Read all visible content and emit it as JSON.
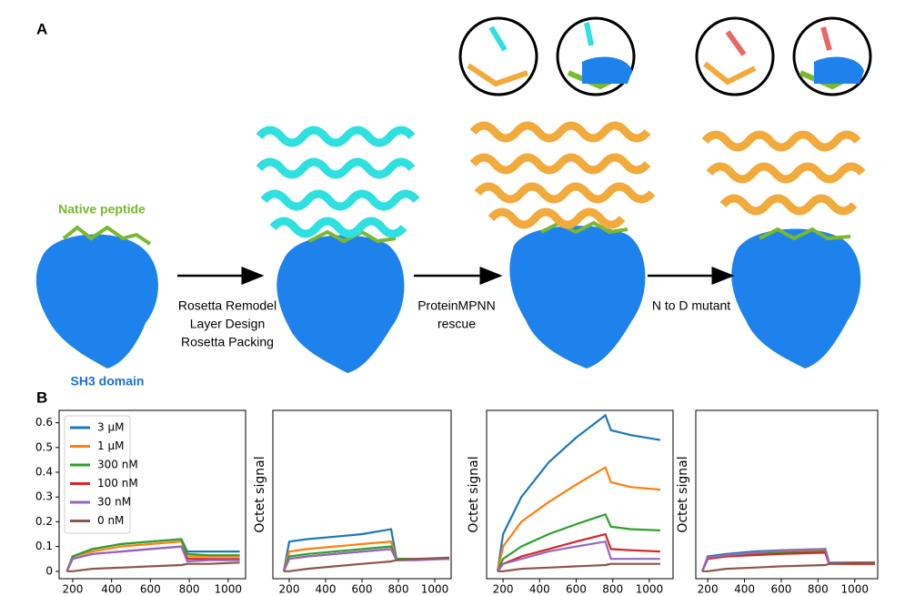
{
  "figure": {
    "panel_a": "A",
    "panel_b": "B",
    "native_peptide": "Native peptide",
    "sh3_domain": "SH3 domain",
    "step1": [
      "Rosetta Remodel",
      "Layer Design",
      "Rosetta Packing"
    ],
    "step2": [
      "ProteinMPNN",
      "rescue"
    ],
    "step3": [
      "N to D mutant"
    ]
  },
  "chart_data": [
    {
      "type": "line",
      "legend": "upper left",
      "x": [
        170,
        200,
        300,
        450,
        600,
        760,
        790,
        900,
        1060
      ],
      "xlim": [
        130,
        1090
      ],
      "xticks": [
        200,
        400,
        600,
        800,
        1000
      ],
      "ylim": [
        -0.03,
        0.65
      ],
      "yticks": [
        0.0,
        0.1,
        0.2,
        0.3,
        0.4,
        0.5,
        0.6
      ],
      "series": [
        {
          "name": "3 μM",
          "color": "#1f77b4",
          "values": [
            0,
            0.06,
            0.09,
            0.11,
            0.12,
            0.13,
            0.08,
            0.08,
            0.08
          ]
        },
        {
          "name": "1 μM",
          "color": "#ff7f0e",
          "values": [
            0,
            0.06,
            0.08,
            0.1,
            0.11,
            0.12,
            0.06,
            0.06,
            0.06
          ]
        },
        {
          "name": "300 nM",
          "color": "#2ca02c",
          "values": [
            0,
            0.06,
            0.09,
            0.11,
            0.12,
            0.13,
            0.07,
            0.065,
            0.065
          ]
        },
        {
          "name": "100 nM",
          "color": "#d62728",
          "values": [
            0,
            0.05,
            0.07,
            0.08,
            0.09,
            0.1,
            0.05,
            0.05,
            0.05
          ]
        },
        {
          "name": "30 nM",
          "color": "#9467bd",
          "values": [
            0,
            0.05,
            0.07,
            0.08,
            0.09,
            0.1,
            0.04,
            0.045,
            0.045
          ]
        },
        {
          "name": "0 nM",
          "color": "#8c564b",
          "values": [
            0,
            0,
            0.01,
            0.015,
            0.02,
            0.025,
            0.03,
            0.03,
            0.035
          ]
        }
      ]
    },
    {
      "type": "line",
      "ylabel": "Octet signal",
      "x": [
        170,
        200,
        300,
        450,
        600,
        760,
        790,
        900,
        1080
      ],
      "xlim": [
        110,
        1090
      ],
      "xticks": [
        200,
        400,
        600,
        800,
        1000
      ],
      "ylim": [
        -0.03,
        0.65
      ],
      "series": [
        {
          "color": "#1f77b4",
          "values": [
            0,
            0.12,
            0.13,
            0.14,
            0.15,
            0.17,
            0.05,
            0.05,
            0.05
          ]
        },
        {
          "color": "#ff7f0e",
          "values": [
            0,
            0.08,
            0.09,
            0.1,
            0.11,
            0.12,
            0.05,
            0.05,
            0.05
          ]
        },
        {
          "color": "#2ca02c",
          "values": [
            0,
            0.06,
            0.07,
            0.08,
            0.09,
            0.1,
            0.05,
            0.05,
            0.05
          ]
        },
        {
          "color": "#d62728",
          "values": [
            0,
            0.05,
            0.06,
            0.07,
            0.08,
            0.09,
            0.045,
            0.05,
            0.05
          ]
        },
        {
          "color": "#9467bd",
          "values": [
            0,
            0.05,
            0.06,
            0.07,
            0.08,
            0.09,
            0.045,
            0.045,
            0.05
          ]
        },
        {
          "color": "#8c564b",
          "values": [
            0,
            0,
            0.01,
            0.02,
            0.03,
            0.04,
            0.045,
            0.05,
            0.055
          ]
        }
      ]
    },
    {
      "type": "line",
      "ylabel": "Octet signal",
      "x": [
        170,
        200,
        300,
        450,
        600,
        760,
        790,
        900,
        1060
      ],
      "xlim": [
        110,
        1130
      ],
      "xticks": [
        200,
        400,
        600,
        800,
        1000
      ],
      "ylim": [
        -0.03,
        0.65
      ],
      "series": [
        {
          "color": "#1f77b4",
          "values": [
            0,
            0.15,
            0.3,
            0.44,
            0.54,
            0.63,
            0.57,
            0.55,
            0.53
          ]
        },
        {
          "color": "#ff7f0e",
          "values": [
            0,
            0.1,
            0.2,
            0.28,
            0.35,
            0.42,
            0.36,
            0.34,
            0.33
          ]
        },
        {
          "color": "#2ca02c",
          "values": [
            0,
            0.05,
            0.1,
            0.15,
            0.19,
            0.23,
            0.18,
            0.17,
            0.165
          ]
        },
        {
          "color": "#d62728",
          "values": [
            0,
            0.03,
            0.06,
            0.09,
            0.12,
            0.15,
            0.09,
            0.085,
            0.08
          ]
        },
        {
          "color": "#9467bd",
          "values": [
            0,
            0.03,
            0.05,
            0.08,
            0.1,
            0.12,
            0.05,
            0.05,
            0.05
          ]
        },
        {
          "color": "#8c564b",
          "values": [
            0,
            0,
            0.01,
            0.015,
            0.02,
            0.025,
            0.03,
            0.03,
            0.03
          ]
        }
      ]
    },
    {
      "type": "line",
      "ylabel": "Octet signal",
      "x": [
        170,
        200,
        300,
        450,
        600,
        840,
        860,
        1000,
        1110
      ],
      "xlim": [
        135,
        1125
      ],
      "xticks": [
        200,
        400,
        600,
        800,
        1000
      ],
      "ylim": [
        -0.03,
        0.65
      ],
      "series": [
        {
          "color": "#1f77b4",
          "values": [
            0,
            0.06,
            0.07,
            0.08,
            0.085,
            0.09,
            0.035,
            0.035,
            0.035
          ]
        },
        {
          "color": "#ff7f0e",
          "values": [
            0,
            0.055,
            0.065,
            0.075,
            0.08,
            0.085,
            0.035,
            0.035,
            0.035
          ]
        },
        {
          "color": "#2ca02c",
          "values": [
            0,
            0.05,
            0.06,
            0.07,
            0.075,
            0.08,
            0.03,
            0.03,
            0.03
          ]
        },
        {
          "color": "#d62728",
          "values": [
            0,
            0.05,
            0.06,
            0.065,
            0.07,
            0.075,
            0.03,
            0.03,
            0.03
          ]
        },
        {
          "color": "#9467bd",
          "values": [
            0,
            0.055,
            0.065,
            0.075,
            0.085,
            0.09,
            0.035,
            0.035,
            0.035
          ]
        },
        {
          "color": "#8c564b",
          "values": [
            0,
            0,
            0.01,
            0.015,
            0.02,
            0.025,
            0.03,
            0.035,
            0.035
          ]
        }
      ]
    }
  ]
}
